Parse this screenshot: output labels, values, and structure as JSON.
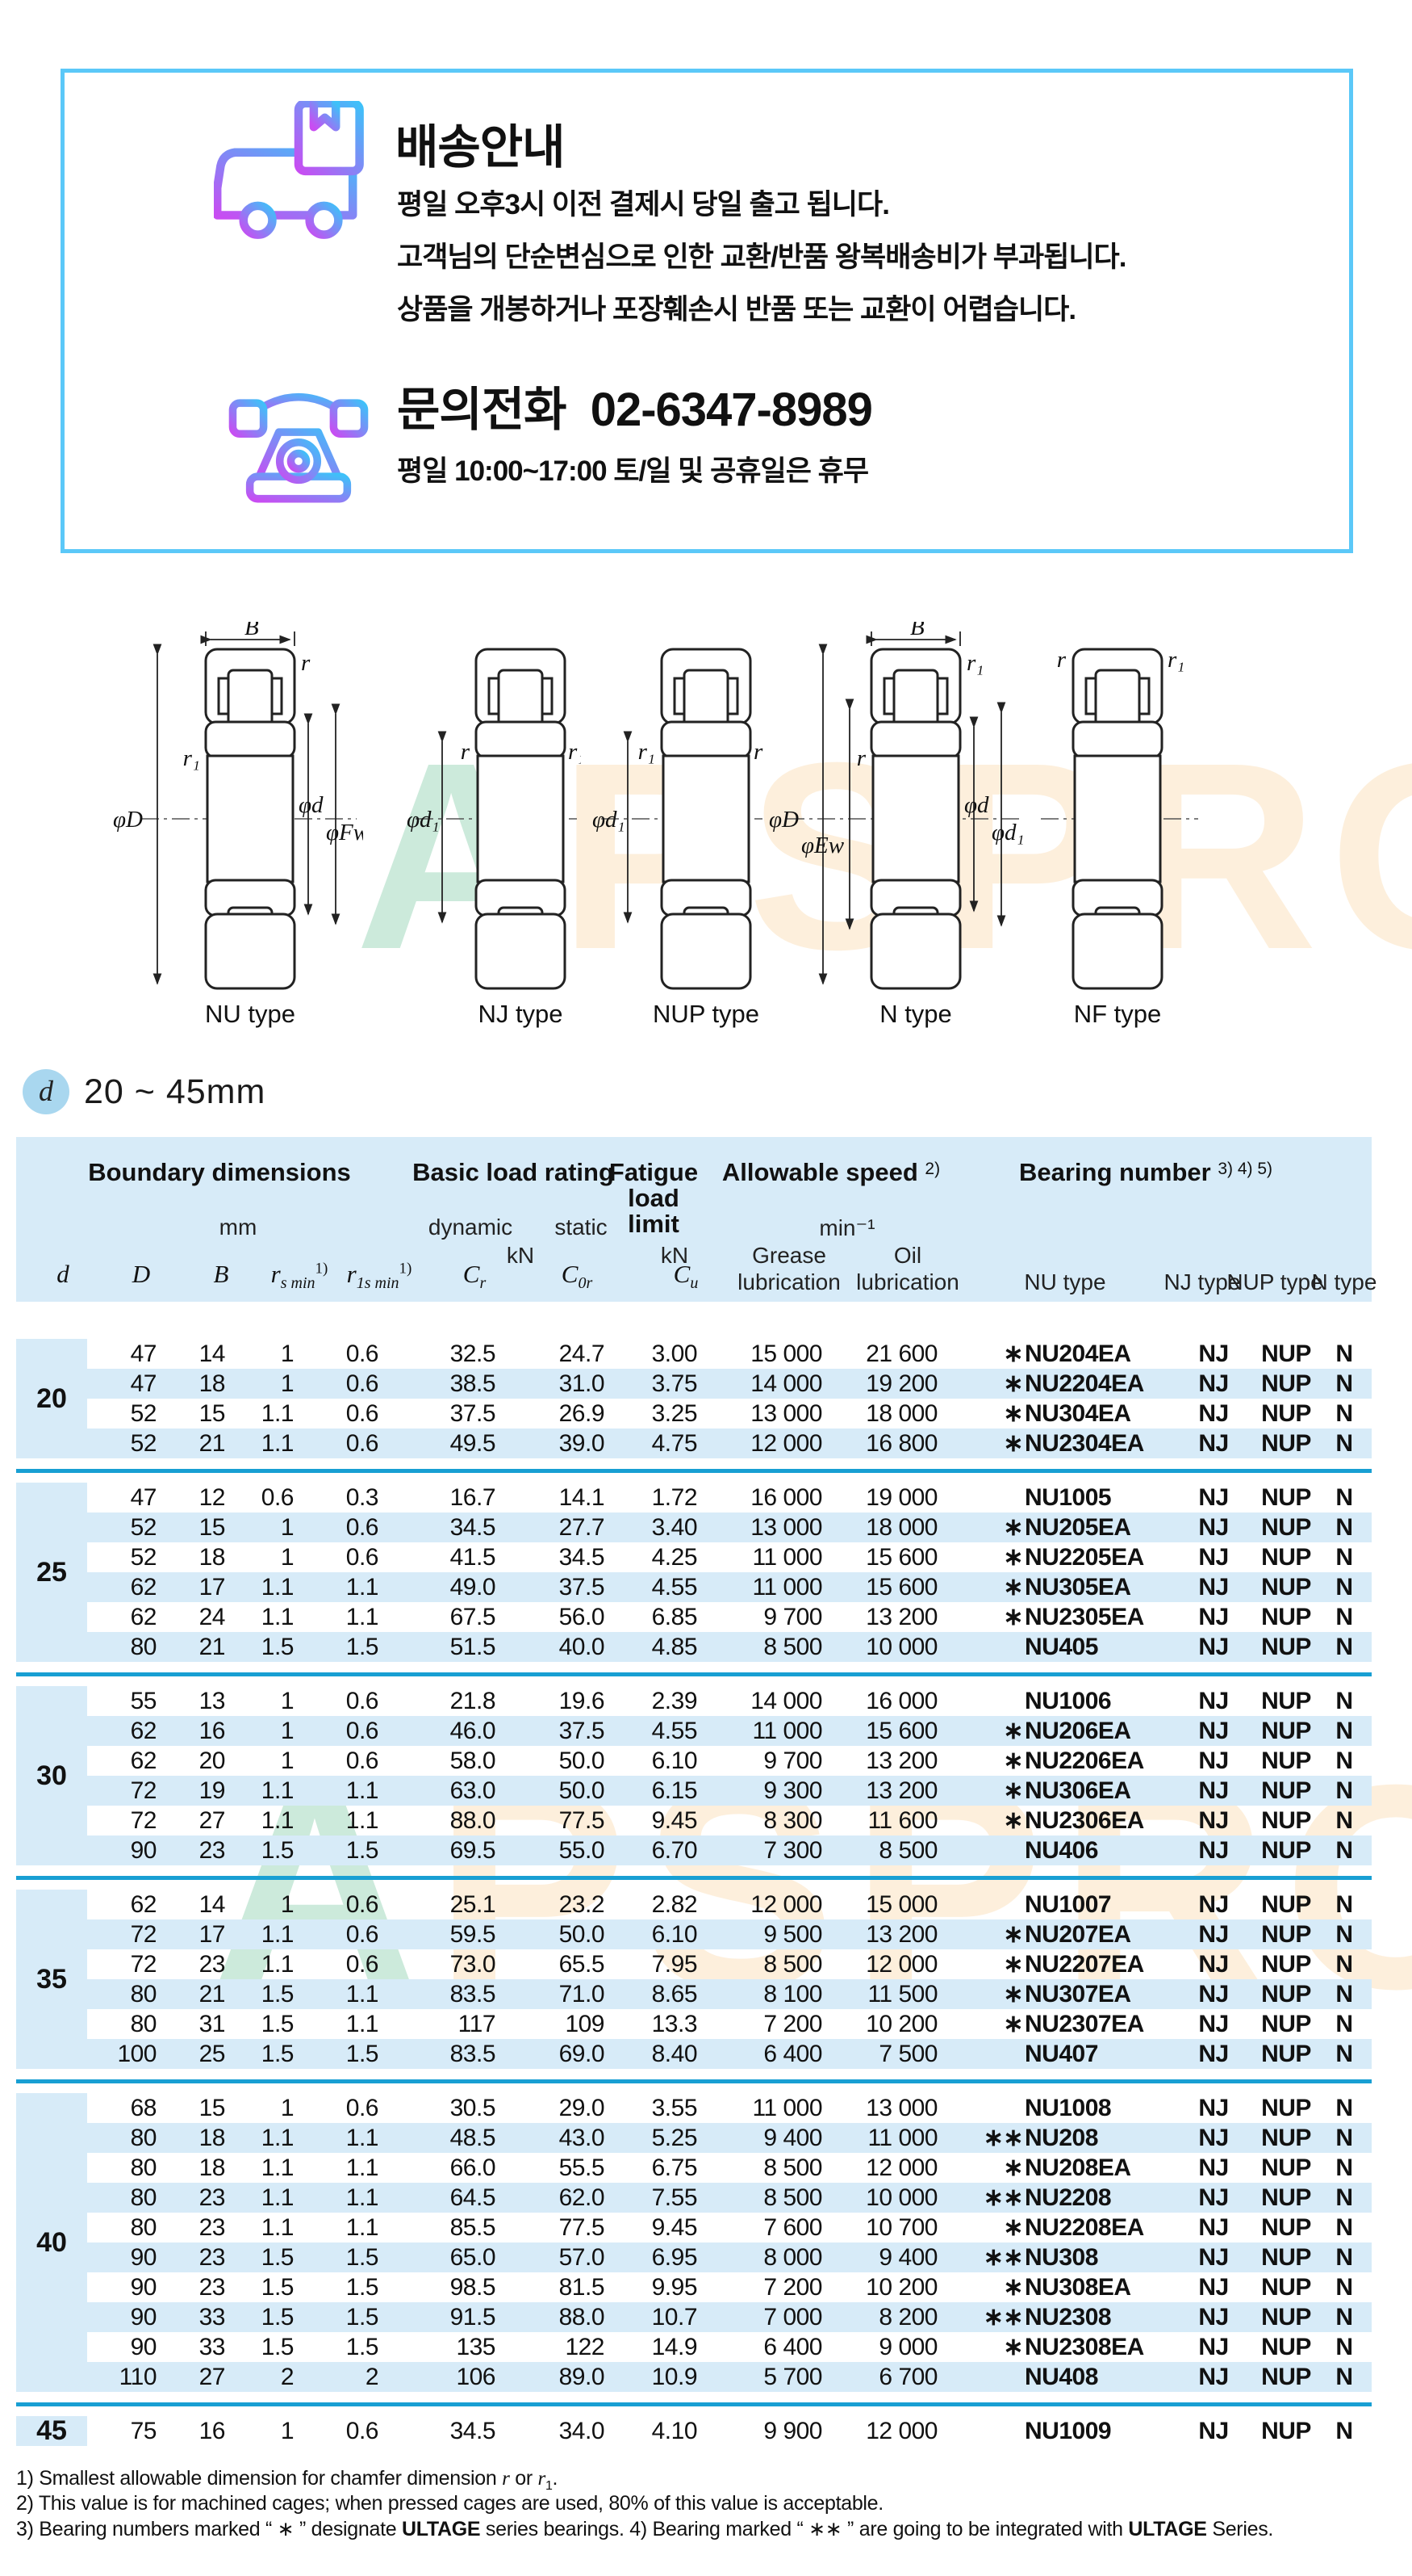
{
  "info_box": {
    "shipping": {
      "title": "배송안내",
      "lines": [
        "평일 오후3시 이전 결제시 당일 출고 됩니다.",
        "고객님의 단순변심으로 인한 교환/반품 왕복배송비가 부과됩니다.",
        "상품을 개봉하거나 포장훼손시 반품 또는 교환이 어렵습니다."
      ]
    },
    "contact": {
      "label": "문의전화",
      "number": "02-6347-8989",
      "hours": "평일 10:00~17:00 토/일 및 공휴일은 휴무"
    }
  },
  "colors": {
    "box_border": "#5bc8f8",
    "table_blue": "#d7ebf8",
    "divider_blue": "#189fd3",
    "badge_blue": "#a9d7ef",
    "icon_gradient_from": "#c84df2",
    "icon_gradient_to": "#3ec1f9"
  },
  "watermark": {
    "a": "A",
    "rest": "PSPRO"
  },
  "diagrams": [
    {
      "label": "NU type",
      "b": "B",
      "r_top": "r",
      "r_side": "r₁",
      "left1": "φD",
      "right1": "φd",
      "right2": "φFw"
    },
    {
      "label": "NJ type",
      "r_left": "r",
      "r_right": "r₁",
      "left1": "φd₁"
    },
    {
      "label": "NUP type",
      "r_left": "r₁",
      "r_right": "r",
      "left1": "φd₁"
    },
    {
      "label": "N type",
      "b": "B",
      "r_top": "r₁",
      "r_side": "r",
      "left1": "φD",
      "left2": "φEw",
      "right1": "φd",
      "right2": "φd₁"
    },
    {
      "label": "NF type",
      "r_left": "r",
      "r_right": "r₁"
    }
  ],
  "section": {
    "symbol": "d",
    "range": "20 ~ 45mm"
  },
  "table": {
    "headers": {
      "boundary": "Boundary dimensions",
      "mm": "mm",
      "basic": "Basic load rating",
      "dynamic": "dynamic",
      "static": "static",
      "kn": "kN",
      "fatigue1": "Fatigue",
      "fatigue2": "load",
      "fatigue3": "limit",
      "allowable": "Allowable speed",
      "allowable_note": "2)",
      "min1": "min⁻¹",
      "grease": "Grease",
      "oil": "Oil",
      "lubrication": "lubrication",
      "bearing": "Bearing number",
      "bearing_note": "3) 4) 5)",
      "nu_type": "NU type",
      "nj_type": "NJ type",
      "nup_type": "NUP type",
      "n_type": "N type"
    },
    "symbols": [
      [
        {
          "t": "d",
          "i": 1
        }
      ],
      [
        {
          "t": "D",
          "i": 1
        }
      ],
      [
        {
          "t": "B",
          "i": 1
        }
      ],
      [
        {
          "t": "r",
          "i": 1
        },
        {
          "t": "s min",
          "sub": 1
        },
        {
          "t": "1)",
          "sup": 1
        }
      ],
      [
        {
          "t": "r",
          "i": 1
        },
        {
          "t": "1s min",
          "sub": 1
        },
        {
          "t": "1)",
          "sup": 1
        }
      ],
      [
        {
          "t": "C",
          "i": 1
        },
        {
          "t": "r",
          "sub": 1
        }
      ],
      [
        {
          "t": "C",
          "i": 1
        },
        {
          "t": "0r",
          "sub": 1
        }
      ],
      [
        {
          "t": "C",
          "i": 1
        },
        {
          "t": "u",
          "sub": 1
        }
      ]
    ],
    "groups": [
      {
        "d": "20",
        "rows": [
          [
            "47",
            "14",
            "1",
            "0.6",
            "32.5",
            "24.7",
            "3.00",
            "15 000",
            "21 600",
            "∗",
            "NU204EA",
            "NJ",
            "NUP",
            "N"
          ],
          [
            "47",
            "18",
            "1",
            "0.6",
            "38.5",
            "31.0",
            "3.75",
            "14 000",
            "19 200",
            "∗",
            "NU2204EA",
            "NJ",
            "NUP",
            "N"
          ],
          [
            "52",
            "15",
            "1.1",
            "0.6",
            "37.5",
            "26.9",
            "3.25",
            "13 000",
            "18 000",
            "∗",
            "NU304EA",
            "NJ",
            "NUP",
            "N"
          ],
          [
            "52",
            "21",
            "1.1",
            "0.6",
            "49.5",
            "39.0",
            "4.75",
            "12 000",
            "16 800",
            "∗",
            "NU2304EA",
            "NJ",
            "NUP",
            "N"
          ]
        ]
      },
      {
        "d": "25",
        "rows": [
          [
            "47",
            "12",
            "0.6",
            "0.3",
            "16.7",
            "14.1",
            "1.72",
            "16 000",
            "19 000",
            "",
            "NU1005",
            "NJ",
            "NUP",
            "N"
          ],
          [
            "52",
            "15",
            "1",
            "0.6",
            "34.5",
            "27.7",
            "3.40",
            "13 000",
            "18 000",
            "∗",
            "NU205EA",
            "NJ",
            "NUP",
            "N"
          ],
          [
            "52",
            "18",
            "1",
            "0.6",
            "41.5",
            "34.5",
            "4.25",
            "11 000",
            "15 600",
            "∗",
            "NU2205EA",
            "NJ",
            "NUP",
            "N"
          ],
          [
            "62",
            "17",
            "1.1",
            "1.1",
            "49.0",
            "37.5",
            "4.55",
            "11 000",
            "15 600",
            "∗",
            "NU305EA",
            "NJ",
            "NUP",
            "N"
          ],
          [
            "62",
            "24",
            "1.1",
            "1.1",
            "67.5",
            "56.0",
            "6.85",
            "9 700",
            "13 200",
            "∗",
            "NU2305EA",
            "NJ",
            "NUP",
            "N"
          ],
          [
            "80",
            "21",
            "1.5",
            "1.5",
            "51.5",
            "40.0",
            "4.85",
            "8 500",
            "10 000",
            "",
            "NU405",
            "NJ",
            "NUP",
            "N"
          ]
        ]
      },
      {
        "d": "30",
        "rows": [
          [
            "55",
            "13",
            "1",
            "0.6",
            "21.8",
            "19.6",
            "2.39",
            "14 000",
            "16 000",
            "",
            "NU1006",
            "NJ",
            "NUP",
            "N"
          ],
          [
            "62",
            "16",
            "1",
            "0.6",
            "46.0",
            "37.5",
            "4.55",
            "11 000",
            "15 600",
            "∗",
            "NU206EA",
            "NJ",
            "NUP",
            "N"
          ],
          [
            "62",
            "20",
            "1",
            "0.6",
            "58.0",
            "50.0",
            "6.10",
            "9 700",
            "13 200",
            "∗",
            "NU2206EA",
            "NJ",
            "NUP",
            "N"
          ],
          [
            "72",
            "19",
            "1.1",
            "1.1",
            "63.0",
            "50.0",
            "6.15",
            "9 300",
            "13 200",
            "∗",
            "NU306EA",
            "NJ",
            "NUP",
            "N"
          ],
          [
            "72",
            "27",
            "1.1",
            "1.1",
            "88.0",
            "77.5",
            "9.45",
            "8 300",
            "11 600",
            "∗",
            "NU2306EA",
            "NJ",
            "NUP",
            "N"
          ],
          [
            "90",
            "23",
            "1.5",
            "1.5",
            "69.5",
            "55.0",
            "6.70",
            "7 300",
            "8 500",
            "",
            "NU406",
            "NJ",
            "NUP",
            "N"
          ]
        ]
      },
      {
        "d": "35",
        "rows": [
          [
            "62",
            "14",
            "1",
            "0.6",
            "25.1",
            "23.2",
            "2.82",
            "12 000",
            "15 000",
            "",
            "NU1007",
            "NJ",
            "NUP",
            "N"
          ],
          [
            "72",
            "17",
            "1.1",
            "0.6",
            "59.5",
            "50.0",
            "6.10",
            "9 500",
            "13 200",
            "∗",
            "NU207EA",
            "NJ",
            "NUP",
            "N"
          ],
          [
            "72",
            "23",
            "1.1",
            "0.6",
            "73.0",
            "65.5",
            "7.95",
            "8 500",
            "12 000",
            "∗",
            "NU2207EA",
            "NJ",
            "NUP",
            "N"
          ],
          [
            "80",
            "21",
            "1.5",
            "1.1",
            "83.5",
            "71.0",
            "8.65",
            "8 100",
            "11 500",
            "∗",
            "NU307EA",
            "NJ",
            "NUP",
            "N"
          ],
          [
            "80",
            "31",
            "1.5",
            "1.1",
            "117",
            "109",
            "13.3",
            "7 200",
            "10 200",
            "∗",
            "NU2307EA",
            "NJ",
            "NUP",
            "N"
          ],
          [
            "100",
            "25",
            "1.5",
            "1.5",
            "83.5",
            "69.0",
            "8.40",
            "6 400",
            "7 500",
            "",
            "NU407",
            "NJ",
            "NUP",
            "N"
          ]
        ]
      },
      {
        "d": "40",
        "rows": [
          [
            "68",
            "15",
            "1",
            "0.6",
            "30.5",
            "29.0",
            "3.55",
            "11 000",
            "13 000",
            "",
            "NU1008",
            "NJ",
            "NUP",
            "N"
          ],
          [
            "80",
            "18",
            "1.1",
            "1.1",
            "48.5",
            "43.0",
            "5.25",
            "9 400",
            "11 000",
            "∗∗",
            "NU208",
            "NJ",
            "NUP",
            "N"
          ],
          [
            "80",
            "18",
            "1.1",
            "1.1",
            "66.0",
            "55.5",
            "6.75",
            "8 500",
            "12 000",
            "∗",
            "NU208EA",
            "NJ",
            "NUP",
            "N"
          ],
          [
            "80",
            "23",
            "1.1",
            "1.1",
            "64.5",
            "62.0",
            "7.55",
            "8 500",
            "10 000",
            "∗∗",
            "NU2208",
            "NJ",
            "NUP",
            "N"
          ],
          [
            "80",
            "23",
            "1.1",
            "1.1",
            "85.5",
            "77.5",
            "9.45",
            "7 600",
            "10 700",
            "∗",
            "NU2208EA",
            "NJ",
            "NUP",
            "N"
          ],
          [
            "90",
            "23",
            "1.5",
            "1.5",
            "65.0",
            "57.0",
            "6.95",
            "8 000",
            "9 400",
            "∗∗",
            "NU308",
            "NJ",
            "NUP",
            "N"
          ],
          [
            "90",
            "23",
            "1.5",
            "1.5",
            "98.5",
            "81.5",
            "9.95",
            "7 200",
            "10 200",
            "∗",
            "NU308EA",
            "NJ",
            "NUP",
            "N"
          ],
          [
            "90",
            "33",
            "1.5",
            "1.5",
            "91.5",
            "88.0",
            "10.7",
            "7 000",
            "8 200",
            "∗∗",
            "NU2308",
            "NJ",
            "NUP",
            "N"
          ],
          [
            "90",
            "33",
            "1.5",
            "1.5",
            "135",
            "122",
            "14.9",
            "6 400",
            "9 000",
            "∗",
            "NU2308EA",
            "NJ",
            "NUP",
            "N"
          ],
          [
            "110",
            "27",
            "2",
            "2",
            "106",
            "89.0",
            "10.9",
            "5 700",
            "6 700",
            "",
            "NU408",
            "NJ",
            "NUP",
            "N"
          ]
        ]
      },
      {
        "d": "45",
        "rows": [
          [
            "75",
            "16",
            "1",
            "0.6",
            "34.5",
            "34.0",
            "4.10",
            "9 900",
            "12 000",
            "",
            "NU1009",
            "NJ",
            "NUP",
            "N"
          ]
        ]
      }
    ]
  },
  "footnotes": [
    [
      {
        "t": "1) Smallest allowable dimension for chamfer dimension "
      },
      {
        "t": "r",
        "i": 1
      },
      {
        "t": " or "
      },
      {
        "t": "r",
        "i": 1
      },
      {
        "t": "1",
        "sub": 1
      },
      {
        "t": "."
      }
    ],
    [
      {
        "t": "2) This value is for machined cages; when pressed cages are used, 80% of this value is acceptable."
      }
    ],
    [
      {
        "t": "3) Bearing numbers marked “ ∗ ” designate "
      },
      {
        "t": "ULTAGE",
        "b": 1
      },
      {
        "t": " series bearings.   4) Bearing marked “ ∗∗ ” are going to be integrated with "
      },
      {
        "t": "ULTAGE",
        "b": 1
      },
      {
        "t": " Series."
      }
    ]
  ]
}
